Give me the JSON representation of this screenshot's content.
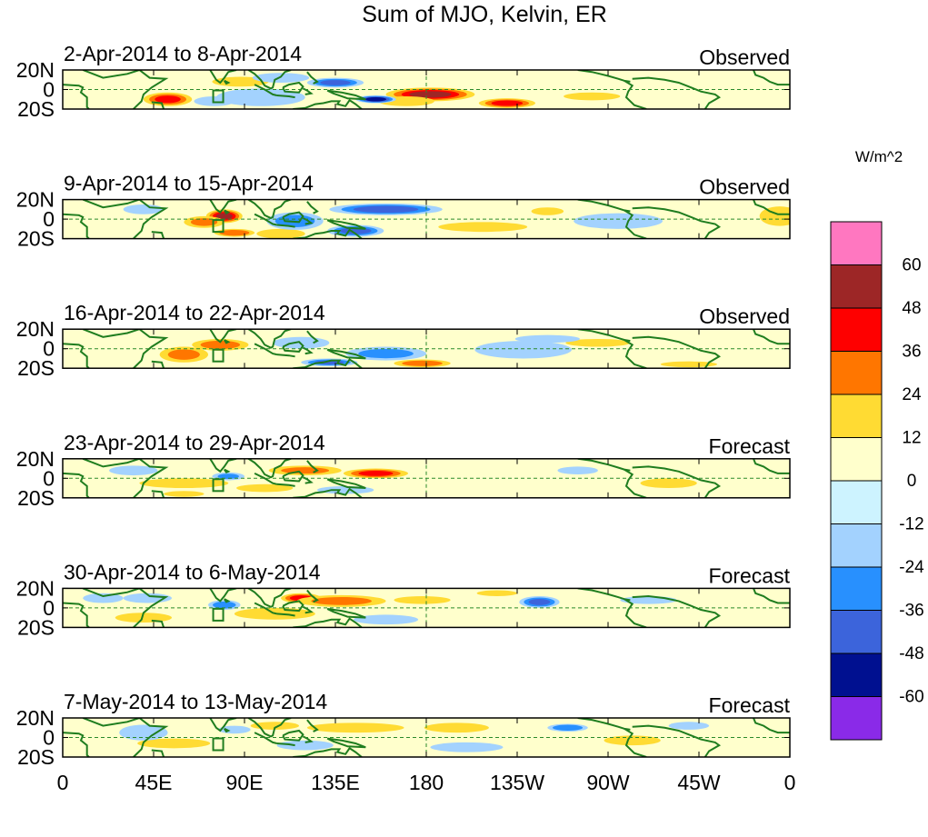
{
  "chart_data": {
    "type": "heatmap",
    "title": "Sum of MJO, Kelvin, ER",
    "units": "W/m^2",
    "colorbar": {
      "levels": [
        "60",
        "48",
        "36",
        "24",
        "12",
        "0",
        "-12",
        "-24",
        "-36",
        "-48",
        "-60"
      ],
      "colors": [
        "#ff77c0",
        "#9d2626",
        "#fe0000",
        "#ff7600",
        "#ffdb33",
        "#ffffcc",
        "#cdf3ff",
        "#a3d2fe",
        "#2890fe",
        "#3c64db",
        "#001090",
        "#8a2ae8"
      ]
    },
    "x_ticks": [
      "0",
      "45E",
      "90E",
      "135E",
      "180",
      "135W",
      "90W",
      "45W",
      "0"
    ],
    "y_ticks": [
      "20N",
      "0",
      "20S"
    ],
    "xlim": [
      0,
      360
    ],
    "ylim": [
      -20,
      20
    ],
    "panels": [
      {
        "period": "2-Apr-2014 to 8-Apr-2014",
        "status": "Observed",
        "anomalies": [
          {
            "lon": 182,
            "lat": -5,
            "value": 52,
            "rx": 22,
            "ry": 7
          },
          {
            "lon": 220,
            "lat": -14,
            "value": 40,
            "rx": 14,
            "ry": 5
          },
          {
            "lon": 170,
            "lat": -12,
            "value": 20,
            "rx": 14,
            "ry": 5
          },
          {
            "lon": 52,
            "lat": -10,
            "value": 38,
            "rx": 12,
            "ry": 7
          },
          {
            "lon": 88,
            "lat": 8,
            "value": 20,
            "rx": 14,
            "ry": 5
          },
          {
            "lon": 262,
            "lat": -7,
            "value": 20,
            "rx": 14,
            "ry": 4
          },
          {
            "lon": 155,
            "lat": -10,
            "value": -58,
            "rx": 10,
            "ry": 4
          },
          {
            "lon": 135,
            "lat": 7,
            "value": -38,
            "rx": 14,
            "ry": 5
          },
          {
            "lon": 98,
            "lat": -8,
            "value": -18,
            "rx": 22,
            "ry": 9
          },
          {
            "lon": 75,
            "lat": -12,
            "value": -22,
            "rx": 10,
            "ry": 5
          },
          {
            "lon": 108,
            "lat": 12,
            "value": -14,
            "rx": 14,
            "ry": 5
          },
          {
            "lon": 22,
            "lat": 0,
            "value": 10,
            "rx": 18,
            "ry": 12
          }
        ]
      },
      {
        "period": "9-Apr-2014 to 15-Apr-2014",
        "status": "Observed",
        "anomalies": [
          {
            "lon": 80,
            "lat": 3,
            "value": 50,
            "rx": 9,
            "ry": 7
          },
          {
            "lon": 85,
            "lat": -14,
            "value": 34,
            "rx": 10,
            "ry": 4
          },
          {
            "lon": 70,
            "lat": -3,
            "value": 24,
            "rx": 10,
            "ry": 6
          },
          {
            "lon": 108,
            "lat": -15,
            "value": 20,
            "rx": 12,
            "ry": 5
          },
          {
            "lon": 208,
            "lat": -8,
            "value": 14,
            "rx": 22,
            "ry": 5
          },
          {
            "lon": 240,
            "lat": 8,
            "value": 16,
            "rx": 8,
            "ry": 4
          },
          {
            "lon": 355,
            "lat": 3,
            "value": 16,
            "rx": 10,
            "ry": 10
          },
          {
            "lon": 160,
            "lat": 10,
            "value": -42,
            "rx": 28,
            "ry": 6
          },
          {
            "lon": 145,
            "lat": -12,
            "value": -40,
            "rx": 14,
            "ry": 6
          },
          {
            "lon": 115,
            "lat": -2,
            "value": -28,
            "rx": 14,
            "ry": 9
          },
          {
            "lon": 40,
            "lat": 10,
            "value": -20,
            "rx": 10,
            "ry": 5
          },
          {
            "lon": 275,
            "lat": -2,
            "value": -14,
            "rx": 22,
            "ry": 8
          }
        ]
      },
      {
        "period": "16-Apr-2014 to 22-Apr-2014",
        "status": "Observed",
        "anomalies": [
          {
            "lon": 178,
            "lat": -15,
            "value": 30,
            "rx": 14,
            "ry": 4
          },
          {
            "lon": 78,
            "lat": 4,
            "value": 28,
            "rx": 14,
            "ry": 6
          },
          {
            "lon": 60,
            "lat": -6,
            "value": 24,
            "rx": 12,
            "ry": 8
          },
          {
            "lon": 265,
            "lat": 6,
            "value": 16,
            "rx": 16,
            "ry": 4
          },
          {
            "lon": 310,
            "lat": -16,
            "value": 14,
            "rx": 14,
            "ry": 3
          },
          {
            "lon": 132,
            "lat": -14,
            "value": -36,
            "rx": 14,
            "ry": 4
          },
          {
            "lon": 160,
            "lat": -5,
            "value": -26,
            "rx": 20,
            "ry": 7
          },
          {
            "lon": 118,
            "lat": 6,
            "value": -16,
            "rx": 14,
            "ry": 6
          },
          {
            "lon": 228,
            "lat": -1,
            "value": -18,
            "rx": 24,
            "ry": 9
          },
          {
            "lon": 240,
            "lat": 10,
            "value": -14,
            "rx": 16,
            "ry": 4
          }
        ]
      },
      {
        "period": "23-Apr-2014 to 29-Apr-2014",
        "status": "Forecast",
        "anomalies": [
          {
            "lon": 155,
            "lat": 5,
            "value": 38,
            "rx": 16,
            "ry": 5
          },
          {
            "lon": 120,
            "lat": 8,
            "value": 24,
            "rx": 18,
            "ry": 5
          },
          {
            "lon": 60,
            "lat": -5,
            "value": 16,
            "rx": 22,
            "ry": 5
          },
          {
            "lon": 60,
            "lat": -16,
            "value": 14,
            "rx": 10,
            "ry": 3
          },
          {
            "lon": 100,
            "lat": -10,
            "value": 14,
            "rx": 14,
            "ry": 4
          },
          {
            "lon": 240,
            "lat": -3,
            "value": 10,
            "rx": 20,
            "ry": 8
          },
          {
            "lon": 300,
            "lat": -5,
            "value": 12,
            "rx": 14,
            "ry": 5
          },
          {
            "lon": 82,
            "lat": 2,
            "value": -24,
            "rx": 8,
            "ry": 4
          },
          {
            "lon": 35,
            "lat": 8,
            "value": -14,
            "rx": 12,
            "ry": 5
          },
          {
            "lon": 255,
            "lat": 8,
            "value": -14,
            "rx": 10,
            "ry": 4
          },
          {
            "lon": 195,
            "lat": 10,
            "value": -10,
            "rx": 18,
            "ry": 5
          },
          {
            "lon": 140,
            "lat": -12,
            "value": -16,
            "rx": 14,
            "ry": 4
          }
        ]
      },
      {
        "period": "30-Apr-2014 to 6-May-2014",
        "status": "Forecast",
        "anomalies": [
          {
            "lon": 118,
            "lat": 10,
            "value": 40,
            "rx": 10,
            "ry": 5
          },
          {
            "lon": 138,
            "lat": 7,
            "value": 26,
            "rx": 22,
            "ry": 6
          },
          {
            "lon": 105,
            "lat": -6,
            "value": 18,
            "rx": 20,
            "ry": 6
          },
          {
            "lon": 40,
            "lat": -10,
            "value": 12,
            "rx": 14,
            "ry": 5
          },
          {
            "lon": 178,
            "lat": 8,
            "value": 14,
            "rx": 14,
            "ry": 4
          },
          {
            "lon": 215,
            "lat": 15,
            "value": 16,
            "rx": 10,
            "ry": 3
          },
          {
            "lon": 236,
            "lat": 6,
            "value": -38,
            "rx": 10,
            "ry": 6
          },
          {
            "lon": 80,
            "lat": 3,
            "value": -30,
            "rx": 8,
            "ry": 5
          },
          {
            "lon": 42,
            "lat": 10,
            "value": -18,
            "rx": 12,
            "ry": 5
          },
          {
            "lon": 160,
            "lat": -12,
            "value": -16,
            "rx": 16,
            "ry": 5
          },
          {
            "lon": 290,
            "lat": 8,
            "value": -14,
            "rx": 14,
            "ry": 4
          },
          {
            "lon": 20,
            "lat": 10,
            "value": -14,
            "rx": 10,
            "ry": 5
          }
        ]
      },
      {
        "period": "7-May-2014 to 13-May-2014",
        "status": "Forecast",
        "anomalies": [
          {
            "lon": 145,
            "lat": 10,
            "value": 20,
            "rx": 24,
            "ry": 5
          },
          {
            "lon": 195,
            "lat": 10,
            "value": 18,
            "rx": 16,
            "ry": 5
          },
          {
            "lon": 55,
            "lat": -6,
            "value": 14,
            "rx": 18,
            "ry": 5
          },
          {
            "lon": 282,
            "lat": -3,
            "value": 12,
            "rx": 14,
            "ry": 5
          },
          {
            "lon": 105,
            "lat": 12,
            "value": 14,
            "rx": 12,
            "ry": 4
          },
          {
            "lon": 250,
            "lat": 10,
            "value": -34,
            "rx": 10,
            "ry": 4
          },
          {
            "lon": 85,
            "lat": 8,
            "value": -22,
            "rx": 8,
            "ry": 4
          },
          {
            "lon": 40,
            "lat": 5,
            "value": -16,
            "rx": 12,
            "ry": 8
          },
          {
            "lon": 120,
            "lat": -8,
            "value": -14,
            "rx": 14,
            "ry": 5
          },
          {
            "lon": 200,
            "lat": -10,
            "value": -12,
            "rx": 18,
            "ry": 5
          },
          {
            "lon": 310,
            "lat": 12,
            "value": -14,
            "rx": 10,
            "ry": 4
          }
        ]
      }
    ]
  }
}
